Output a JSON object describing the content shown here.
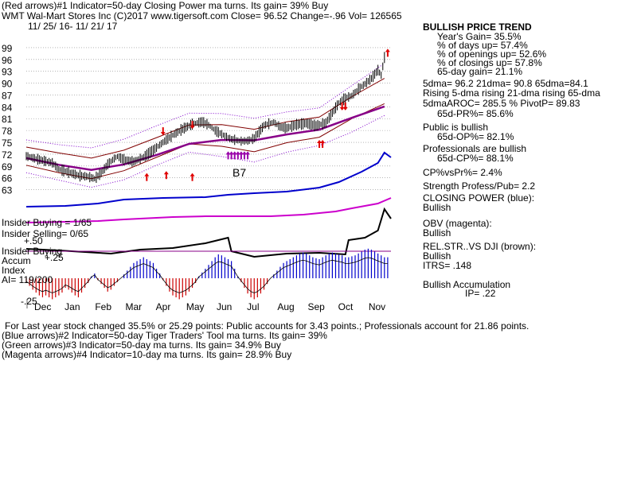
{
  "header": {
    "line1": "(Red arrows)#1 Indicator=50-day Closing Power ma turns. Its gain= 39% Buy",
    "line2": "WMT   Wal-Mart Stores Inc  (C)2017 www.tigersoft.com     Close=   96.52  Change=-.96 Vol= 126565",
    "date_range": "11/ 25/ 16- 11/ 21/ 17"
  },
  "chart_data": {
    "type": "line",
    "price_axis": {
      "ticks": [
        99,
        96,
        93,
        90,
        87,
        84,
        81,
        78,
        75,
        72,
        69,
        66,
        63
      ],
      "ylim": [
        61.5,
        101
      ]
    },
    "months": [
      "Dec",
      "Jan",
      "Feb",
      "Mar",
      "Apr",
      "May",
      "Jun",
      "Jul",
      "Aug",
      "Sep",
      "Oct",
      "Nov"
    ],
    "price_series": {
      "name": "WMT close",
      "points": [
        [
          0,
          71.5
        ],
        [
          3,
          70.8
        ],
        [
          6,
          70.2
        ],
        [
          8,
          69.8
        ],
        [
          10,
          68.2
        ],
        [
          13,
          67.4
        ],
        [
          16,
          66.6
        ],
        [
          19,
          66.3
        ],
        [
          21,
          65.8
        ],
        [
          23,
          67.2
        ],
        [
          25,
          69.4
        ],
        [
          27,
          70.9
        ],
        [
          28,
          71.4
        ],
        [
          30,
          70.6
        ],
        [
          33,
          70.1
        ],
        [
          36,
          71.2
        ],
        [
          39,
          73.0
        ],
        [
          42,
          75.0
        ],
        [
          45,
          76.8
        ],
        [
          48,
          78.4
        ],
        [
          51,
          79.6
        ],
        [
          54,
          80.2
        ],
        [
          56,
          79.4
        ],
        [
          58,
          78.0
        ],
        [
          61,
          76.6
        ],
        [
          63,
          75.8
        ],
        [
          66,
          75.3
        ],
        [
          68,
          75.4
        ],
        [
          70,
          76.0
        ],
        [
          73,
          79.3
        ],
        [
          76,
          80.1
        ],
        [
          78,
          78.9
        ],
        [
          80,
          78.6
        ],
        [
          83,
          79.5
        ],
        [
          86,
          79.8
        ],
        [
          89,
          79.2
        ],
        [
          92,
          79.9
        ],
        [
          94,
          82.5
        ],
        [
          96,
          85.0
        ],
        [
          98,
          86.2
        ],
        [
          100,
          86.8
        ],
        [
          102,
          88.5
        ],
        [
          104,
          89.8
        ],
        [
          106,
          91.2
        ],
        [
          108,
          93.3
        ],
        [
          109,
          92.0
        ],
        [
          110,
          96.5
        ]
      ],
      "color": "#000000"
    },
    "moving_average": {
      "name": "65-dma",
      "color": "#880088",
      "points": [
        [
          0,
          71.0
        ],
        [
          10,
          69.3
        ],
        [
          20,
          68.0
        ],
        [
          30,
          69.4
        ],
        [
          40,
          71.8
        ],
        [
          50,
          74.6
        ],
        [
          60,
          75.6
        ],
        [
          70,
          75.5
        ],
        [
          80,
          77.0
        ],
        [
          90,
          78.2
        ],
        [
          100,
          81.2
        ],
        [
          110,
          84.1
        ]
      ]
    },
    "band_upper": {
      "color": "#800000",
      "points": [
        [
          0,
          73.8
        ],
        [
          10,
          72.3
        ],
        [
          20,
          71.0
        ],
        [
          30,
          73.0
        ],
        [
          40,
          76.2
        ],
        [
          50,
          79.4
        ],
        [
          60,
          79.5
        ],
        [
          70,
          78.3
        ],
        [
          80,
          80.2
        ],
        [
          90,
          81.4
        ],
        [
          100,
          86.6
        ],
        [
          110,
          91.2
        ]
      ]
    },
    "band_lower": {
      "color": "#800000",
      "points": [
        [
          0,
          69.2
        ],
        [
          10,
          67.3
        ],
        [
          20,
          65.8
        ],
        [
          30,
          67.8
        ],
        [
          40,
          71.2
        ],
        [
          50,
          74.6
        ],
        [
          60,
          74.0
        ],
        [
          70,
          72.6
        ],
        [
          80,
          74.9
        ],
        [
          90,
          76.3
        ],
        [
          100,
          81.0
        ],
        [
          110,
          84.8
        ]
      ]
    },
    "dotted_upper": {
      "color": "#8000cc",
      "points": [
        [
          0,
          75.6
        ],
        [
          10,
          74.4
        ],
        [
          20,
          73.6
        ],
        [
          30,
          75.8
        ],
        [
          40,
          79.2
        ],
        [
          50,
          82.4
        ],
        [
          60,
          82.3
        ],
        [
          70,
          81.1
        ],
        [
          80,
          82.7
        ],
        [
          90,
          83.7
        ],
        [
          100,
          89.4
        ],
        [
          110,
          95.0
        ]
      ]
    },
    "dotted_lower": {
      "color": "#8000cc",
      "points": [
        [
          0,
          67.3
        ],
        [
          10,
          65.4
        ],
        [
          20,
          63.6
        ],
        [
          30,
          65.5
        ],
        [
          40,
          69.2
        ],
        [
          50,
          72.5
        ],
        [
          60,
          71.4
        ],
        [
          70,
          70.0
        ],
        [
          80,
          72.5
        ],
        [
          90,
          74.2
        ],
        [
          100,
          77.6
        ],
        [
          110,
          81.8
        ]
      ]
    },
    "closing_power": {
      "name": "Closing Power",
      "color": "#0000cc",
      "points": [
        [
          0,
          260
        ],
        [
          12,
          259
        ],
        [
          22,
          256
        ],
        [
          30,
          251
        ],
        [
          42,
          249
        ],
        [
          55,
          248
        ],
        [
          62,
          245
        ],
        [
          70,
          243
        ],
        [
          80,
          241
        ],
        [
          90,
          236
        ],
        [
          96,
          229
        ],
        [
          103,
          216
        ],
        [
          108,
          205
        ],
        [
          110,
          192
        ],
        [
          112,
          198
        ]
      ]
    },
    "obv": {
      "name": "OBV",
      "color": "#cc00cc",
      "points": [
        [
          0,
          280
        ],
        [
          12,
          279
        ],
        [
          22,
          278
        ],
        [
          30,
          276
        ],
        [
          45,
          273
        ],
        [
          55,
          272
        ],
        [
          65,
          272
        ],
        [
          75,
          272
        ],
        [
          85,
          270
        ],
        [
          95,
          266
        ],
        [
          100,
          262
        ],
        [
          108,
          256
        ],
        [
          112,
          249
        ]
      ]
    },
    "rel_strength": {
      "name": "REL.STR. VS DJI",
      "color": "#000000",
      "points": [
        [
          0,
          313
        ],
        [
          10,
          315
        ],
        [
          22,
          318
        ],
        [
          26,
          319
        ],
        [
          35,
          314
        ],
        [
          45,
          312
        ],
        [
          55,
          306
        ],
        [
          62,
          299
        ],
        [
          63,
          316
        ],
        [
          70,
          323
        ],
        [
          80,
          319
        ],
        [
          90,
          318
        ],
        [
          98,
          320
        ],
        [
          99,
          302
        ],
        [
          104,
          299
        ],
        [
          108,
          290
        ],
        [
          110,
          263
        ],
        [
          112,
          275
        ]
      ]
    },
    "accumulation": {
      "name": "Accum Index",
      "up_color": "#0000cc",
      "down_color": "#cc0000",
      "values": [
        -0.05,
        -0.08,
        -0.12,
        -0.15,
        -0.18,
        -0.2,
        -0.18,
        -0.2,
        -0.22,
        -0.2,
        -0.18,
        -0.15,
        -0.1,
        -0.12,
        -0.15,
        -0.18,
        -0.2,
        -0.15,
        -0.1,
        -0.05,
        0.02,
        0.05,
        -0.02,
        -0.06,
        -0.1,
        -0.14,
        -0.12,
        -0.08,
        -0.04,
        0.0,
        0.04,
        0.08,
        0.12,
        0.16,
        0.18,
        0.2,
        0.22,
        0.2,
        0.18,
        0.16,
        0.1,
        0.05,
        -0.02,
        -0.08,
        -0.14,
        -0.18,
        -0.2,
        -0.22,
        -0.2,
        -0.18,
        -0.14,
        -0.1,
        -0.05,
        0.02,
        0.06,
        0.1,
        0.14,
        0.18,
        0.22,
        0.25,
        0.24,
        0.22,
        0.2,
        0.18,
        0.1,
        0.02,
        -0.04,
        -0.1,
        -0.16,
        -0.2,
        -0.22,
        -0.2,
        -0.16,
        -0.12,
        -0.06,
        0.0,
        0.04,
        0.08,
        0.12,
        0.16,
        0.18,
        0.2,
        0.22,
        0.24,
        0.26,
        0.27,
        0.26,
        0.24,
        0.22,
        0.21,
        0.2,
        0.22,
        0.24,
        0.26,
        0.27,
        0.26,
        0.25,
        0.24,
        0.22,
        0.22,
        0.23,
        0.24,
        0.26,
        0.28,
        0.3,
        0.31,
        0.3,
        0.28,
        0.26,
        0.24,
        0.22,
        0.22
      ],
      "ticks": [
        "+.50",
        "+.25",
        "-.25"
      ]
    },
    "arrows": {
      "red_down": [
        [
          42,
          77
        ],
        [
          51,
          78.6
        ],
        [
          97,
          83.3
        ],
        [
          98,
          83.3
        ]
      ],
      "red_up": [
        [
          37,
          67
        ],
        [
          43,
          67.5
        ],
        [
          51,
          67
        ],
        [
          90,
          75.4
        ],
        [
          91,
          75.4
        ],
        [
          111,
          98.5
        ]
      ],
      "magenta_cluster": [
        [
          62,
          72.5
        ],
        [
          63,
          72.5
        ],
        [
          64,
          72.5
        ],
        [
          65,
          72.5
        ],
        [
          66,
          72.5
        ],
        [
          67,
          72.5
        ],
        [
          68,
          72.5
        ]
      ]
    },
    "annotation": "B7"
  },
  "left_panel": {
    "insider_buying": "Insider Buying = 1/65",
    "insider_selling": "Insider Selling= 0/65",
    "insider_buying2": "Insider Buying",
    "accum_label": "Accum",
    "accum_plus25": "+.25",
    "index_label": "Index",
    "ai_label": "AI= 119/200",
    "plus50": "+.50",
    "minus25": "-.25"
  },
  "right_panel": {
    "trend_title": "BULLISH PRICE TREND",
    "years_gain": "Year's Gain= 35.5%",
    "days_up": "% of days up= 57.4%",
    "openings_up": "% of openings up= 52.6%",
    "closings_up": "% of closings up= 57.8%",
    "gain65": "65-day gain= 21.1%",
    "dma_line": "5dma= 96.2 21dma= 90.8 65dma=84.1",
    "rising_line": "Rising 5-dma rising 21-dma rising 65-dma",
    "aroc_line": "5dmaAROC= 285.5 %  PivotP= 89.83",
    "pr_line": "65d-PR%= 85.6%",
    "public_title": "Public is bullish",
    "op_line": "65d-OP%= 82.1%",
    "prof_title": "Professionals are bullish",
    "cp_line": "65d-CP%= 88.1%",
    "cpvspr": "CP%vsPr%=  2.4%",
    "strength": "Strength Profess/Pub= 2.2",
    "closing_power_title": "CLOSING POWER (blue):",
    "closing_power_val": "Bullish",
    "obv_title": "OBV (magenta):",
    "obv_val": "Bullish",
    "relstr_title": "REL.STR..VS DJI (brown):",
    "relstr_val": "Bullish",
    "itrs": "ITRS= .148",
    "accum_title": "Bullish Accumulation",
    "ip": "IP=  .22"
  },
  "footer": {
    "line1": "For Last year stock changed  35.5% or  25.29 points:  Public accounts for  3.43 points.;  Professionals account for  21.86 points.",
    "line2": "(Blue arrows)#2 Indicator=50-day Tiger Traders' Tool ma turns. Its gain= 39%",
    "line3": "(Green arrows)#3 Indicator=50-day ma turns. Its gain= 34.9% Buy",
    "line4": "(Magenta arrows)#4 Indicator=10-day ma turns. Its gain= 28.9% Buy"
  }
}
